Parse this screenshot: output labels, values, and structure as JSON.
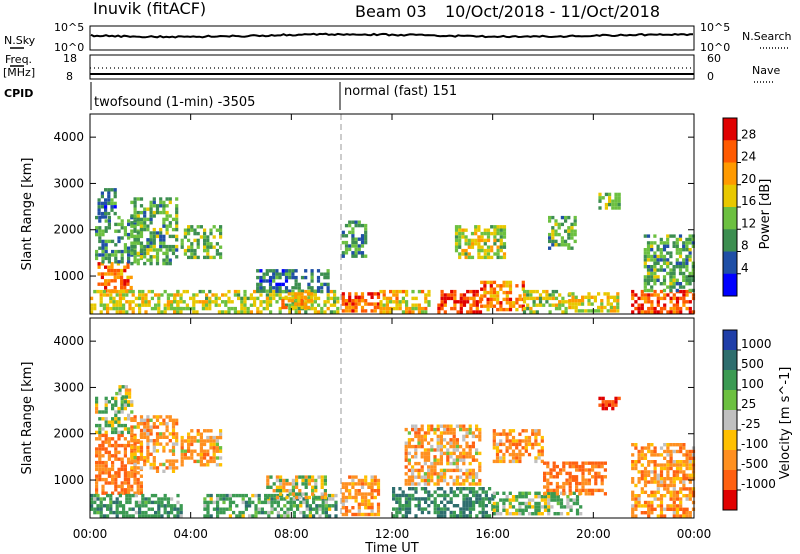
{
  "header": {
    "station": "Inuvik (fitACF)",
    "beam": "Beam 03",
    "date_range": "10/Oct/2018 - 11/Oct/2018"
  },
  "panels": {
    "nsky": {
      "left_label": "N.Sky",
      "right_label": "N.Search",
      "left_ticks": [
        "10^5",
        "10^0"
      ],
      "right_ticks": [
        "10^5",
        "10^0"
      ]
    },
    "freq": {
      "left_label_1": "Freq.",
      "left_label_2": "[MHz]",
      "right_label": "Nave",
      "left_ticks": [
        "18",
        "8"
      ],
      "right_ticks": [
        "60",
        "0"
      ]
    },
    "cpid": {
      "label": "CPID",
      "segment_1": "twofsound (1-min) -3505",
      "segment_2": "normal (fast) 151"
    }
  },
  "power_panel": {
    "ylabel": "Slant Range [km]",
    "colorbar_label": "Power [dB]",
    "colorbar_ticks": [
      "28",
      "24",
      "20",
      "16",
      "12",
      "8",
      "4"
    ],
    "colors": [
      "#e00000",
      "#ff5a00",
      "#ff9a00",
      "#e8c800",
      "#6cc040",
      "#3c8e50",
      "#1f4fa6",
      "#0000ff"
    ]
  },
  "velocity_panel": {
    "ylabel": "Slant Range [km]",
    "colorbar_label": "Velocity [m s^-1]",
    "colorbar_ticks": [
      "1000",
      "500",
      "100",
      "25",
      "-25",
      "-100",
      "-500",
      "-1000"
    ],
    "colors": [
      "#1f3ea8",
      "#2e6e6e",
      "#3b9a52",
      "#6cc040",
      "#c0c0c0",
      "#ffc000",
      "#ff9020",
      "#ff6010",
      "#e00000"
    ]
  },
  "chart_data": [
    {
      "type": "heatmap",
      "title": "",
      "xlabel": "Time UT",
      "ylabel": "Slant Range [km]",
      "x_ticks": [
        "00:00",
        "04:00",
        "08:00",
        "12:00",
        "16:00",
        "20:00",
        "00:00"
      ],
      "y_ticks": [
        1000,
        2000,
        3000,
        4000
      ],
      "xlim_hours": [
        0,
        24
      ],
      "ylim_km": [
        180,
        4500
      ],
      "colorbar": {
        "label": "Power [dB]",
        "ticks": [
          28,
          24,
          20,
          16,
          12,
          8,
          4
        ],
        "range": [
          0,
          30
        ]
      },
      "series": [
        {
          "t0": 0.3,
          "t1": 1.6,
          "r0": 700,
          "r1": 1300,
          "v": 22
        },
        {
          "t0": 0.2,
          "t1": 2.0,
          "r0": 1300,
          "r1": 2300,
          "v": 9
        },
        {
          "t0": 0.3,
          "t1": 1.0,
          "r0": 2300,
          "r1": 2900,
          "v": 6
        },
        {
          "t0": 1.6,
          "t1": 3.4,
          "r0": 1300,
          "r1": 2700,
          "v": 10
        },
        {
          "t0": 0.0,
          "t1": 3.6,
          "r0": 250,
          "r1": 700,
          "v": 15
        },
        {
          "t0": 3.6,
          "t1": 5.2,
          "r0": 1400,
          "r1": 2100,
          "v": 12
        },
        {
          "t0": 3.3,
          "t1": 9.8,
          "r0": 250,
          "r1": 700,
          "v": 14
        },
        {
          "t0": 6.6,
          "t1": 9.4,
          "r0": 650,
          "r1": 1150,
          "v": 6
        },
        {
          "t0": 7.6,
          "t1": 8.8,
          "r0": 350,
          "r1": 650,
          "v": 20
        },
        {
          "t0": 10.0,
          "t1": 11.5,
          "r0": 250,
          "r1": 650,
          "v": 24
        },
        {
          "t0": 10.0,
          "t1": 11.0,
          "r0": 1400,
          "r1": 2200,
          "v": 8
        },
        {
          "t0": 11.5,
          "t1": 13.5,
          "r0": 250,
          "r1": 700,
          "v": 18
        },
        {
          "t0": 13.8,
          "t1": 15.5,
          "r0": 200,
          "r1": 700,
          "v": 26
        },
        {
          "t0": 15.5,
          "t1": 17.2,
          "r0": 250,
          "r1": 900,
          "v": 22
        },
        {
          "t0": 17.2,
          "t1": 19.0,
          "r0": 250,
          "r1": 700,
          "v": 14
        },
        {
          "t0": 19.0,
          "t1": 21.0,
          "r0": 250,
          "r1": 650,
          "v": 16
        },
        {
          "t0": 21.5,
          "t1": 24.0,
          "r0": 250,
          "r1": 700,
          "v": 24
        },
        {
          "t0": 14.5,
          "t1": 16.5,
          "r0": 1400,
          "r1": 2100,
          "v": 14
        },
        {
          "t0": 18.2,
          "t1": 19.3,
          "r0": 1600,
          "r1": 2300,
          "v": 10
        },
        {
          "t0": 20.2,
          "t1": 21.0,
          "r0": 2500,
          "r1": 2800,
          "v": 12
        },
        {
          "t0": 22.0,
          "t1": 24.0,
          "r0": 700,
          "r1": 1900,
          "v": 10
        }
      ]
    },
    {
      "type": "heatmap",
      "title": "",
      "xlabel": "Time UT",
      "ylabel": "Slant Range [km]",
      "x_ticks": [
        "00:00",
        "04:00",
        "08:00",
        "12:00",
        "16:00",
        "20:00",
        "00:00"
      ],
      "y_ticks": [
        1000,
        2000,
        3000,
        4000
      ],
      "xlim_hours": [
        0,
        24
      ],
      "ylim_km": [
        180,
        4500
      ],
      "colorbar": {
        "label": "Velocity [m s^-1]",
        "ticks": [
          1000,
          500,
          100,
          25,
          -25,
          -100,
          -500,
          -1000
        ]
      },
      "series": [
        {
          "t0": 0.2,
          "t1": 2.0,
          "r0": 700,
          "r1": 2000,
          "v": -300
        },
        {
          "t0": 0.2,
          "t1": 1.6,
          "r0": 2000,
          "r1": 2800,
          "v": 50
        },
        {
          "t0": 1.0,
          "t1": 1.6,
          "r0": 2800,
          "r1": 3050,
          "v": 0
        },
        {
          "t0": 1.6,
          "t1": 3.5,
          "r0": 1200,
          "r1": 2400,
          "v": -150
        },
        {
          "t0": 0.0,
          "t1": 3.6,
          "r0": 250,
          "r1": 700,
          "v": 200
        },
        {
          "t0": 3.6,
          "t1": 5.2,
          "r0": 1300,
          "r1": 2100,
          "v": -150
        },
        {
          "t0": 4.5,
          "t1": 9.8,
          "r0": 250,
          "r1": 700,
          "v": 150
        },
        {
          "t0": 7.0,
          "t1": 9.4,
          "r0": 650,
          "r1": 1100,
          "v": 0
        },
        {
          "t0": 10.0,
          "t1": 11.5,
          "r0": 250,
          "r1": 1100,
          "v": -200
        },
        {
          "t0": 12.0,
          "t1": 16.0,
          "r0": 250,
          "r1": 850,
          "v": 300
        },
        {
          "t0": 16.0,
          "t1": 19.5,
          "r0": 250,
          "r1": 750,
          "v": 100
        },
        {
          "t0": 12.5,
          "t1": 15.5,
          "r0": 900,
          "r1": 2200,
          "v": -150
        },
        {
          "t0": 16.0,
          "t1": 18.0,
          "r0": 1400,
          "r1": 2100,
          "v": -200
        },
        {
          "t0": 18.0,
          "t1": 20.5,
          "r0": 700,
          "r1": 1400,
          "v": -300
        },
        {
          "t0": 20.2,
          "t1": 21.0,
          "r0": 2550,
          "r1": 2800,
          "v": -700
        },
        {
          "t0": 21.5,
          "t1": 24.0,
          "r0": 250,
          "r1": 1800,
          "v": -200
        }
      ]
    }
  ]
}
